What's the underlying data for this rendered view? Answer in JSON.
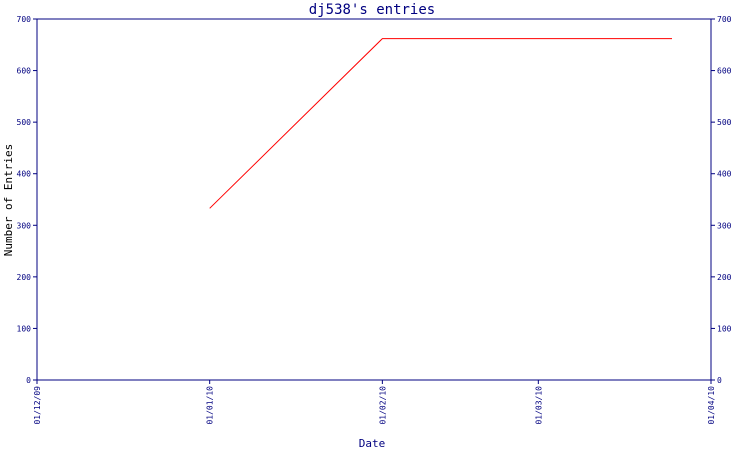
{
  "chart_data": {
    "type": "line",
    "title": "dj538's entries",
    "xlabel": "Date",
    "ylabel": "Number of Entries",
    "x_ticks": [
      "01/12/09",
      "01/01/10",
      "01/02/10",
      "01/03/10",
      "01/04/10"
    ],
    "y_ticks": [
      "0",
      "100",
      "200",
      "300",
      "400",
      "500",
      "600",
      "700"
    ],
    "ylim": [
      0,
      700
    ],
    "series": [
      {
        "color": "#ff0000",
        "points": [
          {
            "x": "01/01/10",
            "y": 333
          },
          {
            "x": "01/02/10",
            "y": 662
          },
          {
            "x": "01/03/10",
            "y": 662
          },
          {
            "x": "2010-03-25",
            "y": 662
          }
        ]
      }
    ],
    "axis_color": "#000080",
    "grid": false,
    "right_axis_mirrored": true
  }
}
